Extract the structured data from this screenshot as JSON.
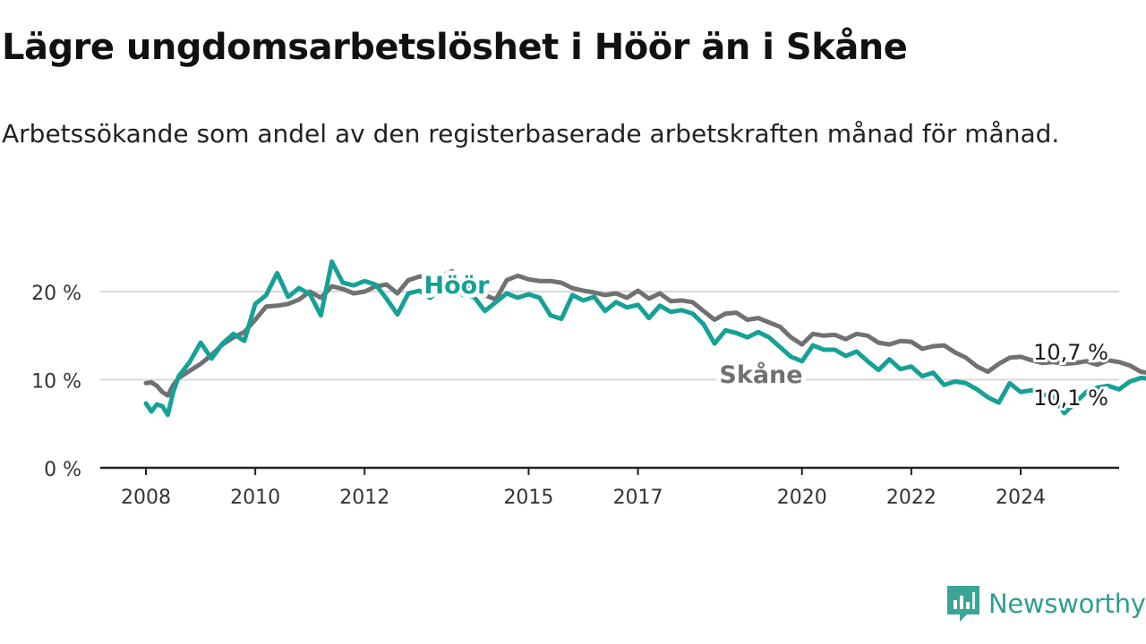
{
  "title": "Lägre ungdomsarbetslöshet i Höör än i Skåne",
  "subtitle": "Arbetssökande som andel av den registerbaserade arbetskraften månad för månad.",
  "brand": {
    "name": "Newsworthy",
    "icon": "newsworthy-logo-icon",
    "color": "#3aa597"
  },
  "chart_data": {
    "type": "line",
    "xlim": [
      2008,
      2026.5
    ],
    "ylim": [
      0,
      22
    ],
    "grid": true,
    "x_ticks": [
      {
        "value": 2008,
        "label": "2008"
      },
      {
        "value": 2010,
        "label": "2010"
      },
      {
        "value": 2012,
        "label": "2012"
      },
      {
        "value": 2015,
        "label": "2015"
      },
      {
        "value": 2017,
        "label": "2017"
      },
      {
        "value": 2020,
        "label": "2020"
      },
      {
        "value": 2022,
        "label": "2022"
      },
      {
        "value": 2024,
        "label": "2024"
      }
    ],
    "y_ticks": [
      {
        "value": 0,
        "label": "0 %"
      },
      {
        "value": 10,
        "label": "10 %"
      },
      {
        "value": 20,
        "label": "20 %"
      }
    ],
    "series": [
      {
        "name": "Skåne",
        "color": "#717073",
        "end_label": "10,7 %",
        "points": [
          [
            2008.0,
            9.6
          ],
          [
            2008.1,
            9.7
          ],
          [
            2008.2,
            9.3
          ],
          [
            2008.3,
            8.6
          ],
          [
            2008.4,
            8.2
          ],
          [
            2008.5,
            9.4
          ],
          [
            2008.6,
            10.2
          ],
          [
            2008.8,
            11.0
          ],
          [
            2009.0,
            11.8
          ],
          [
            2009.2,
            12.8
          ],
          [
            2009.4,
            14.0
          ],
          [
            2009.6,
            14.8
          ],
          [
            2009.8,
            15.4
          ],
          [
            2010.0,
            16.8
          ],
          [
            2010.2,
            18.3
          ],
          [
            2010.4,
            18.4
          ],
          [
            2010.6,
            18.6
          ],
          [
            2010.8,
            19.1
          ],
          [
            2011.0,
            20.0
          ],
          [
            2011.2,
            19.3
          ],
          [
            2011.4,
            20.6
          ],
          [
            2011.6,
            20.3
          ],
          [
            2011.8,
            19.8
          ],
          [
            2012.0,
            20.0
          ],
          [
            2012.2,
            20.6
          ],
          [
            2012.4,
            20.8
          ],
          [
            2012.6,
            19.8
          ],
          [
            2012.8,
            21.3
          ],
          [
            2013.0,
            21.7
          ],
          [
            2013.2,
            21.8
          ],
          [
            2013.4,
            21.8
          ],
          [
            2013.6,
            22.3
          ],
          [
            2013.8,
            20.6
          ],
          [
            2014.0,
            20.1
          ],
          [
            2014.2,
            19.6
          ],
          [
            2014.4,
            19.1
          ],
          [
            2014.6,
            21.3
          ],
          [
            2014.8,
            21.8
          ],
          [
            2015.0,
            21.4
          ],
          [
            2015.2,
            21.2
          ],
          [
            2015.4,
            21.2
          ],
          [
            2015.6,
            21.0
          ],
          [
            2015.8,
            20.4
          ],
          [
            2016.0,
            20.1
          ],
          [
            2016.2,
            19.9
          ],
          [
            2016.4,
            19.6
          ],
          [
            2016.6,
            19.8
          ],
          [
            2016.8,
            19.3
          ],
          [
            2017.0,
            20.1
          ],
          [
            2017.2,
            19.2
          ],
          [
            2017.4,
            19.8
          ],
          [
            2017.6,
            18.9
          ],
          [
            2017.8,
            19.0
          ],
          [
            2018.0,
            18.8
          ],
          [
            2018.2,
            17.8
          ],
          [
            2018.4,
            16.8
          ],
          [
            2018.6,
            17.5
          ],
          [
            2018.8,
            17.6
          ],
          [
            2019.0,
            16.8
          ],
          [
            2019.2,
            17.0
          ],
          [
            2019.4,
            16.5
          ],
          [
            2019.6,
            16.0
          ],
          [
            2019.8,
            14.8
          ],
          [
            2020.0,
            14.0
          ],
          [
            2020.2,
            15.2
          ],
          [
            2020.4,
            15.0
          ],
          [
            2020.6,
            15.1
          ],
          [
            2020.8,
            14.6
          ],
          [
            2021.0,
            15.2
          ],
          [
            2021.2,
            15.0
          ],
          [
            2021.4,
            14.2
          ],
          [
            2021.6,
            14.0
          ],
          [
            2021.8,
            14.4
          ],
          [
            2022.0,
            14.3
          ],
          [
            2022.2,
            13.5
          ],
          [
            2022.4,
            13.8
          ],
          [
            2022.6,
            13.9
          ],
          [
            2022.8,
            13.1
          ],
          [
            2023.0,
            12.5
          ],
          [
            2023.2,
            11.5
          ],
          [
            2023.4,
            10.9
          ],
          [
            2023.6,
            11.8
          ],
          [
            2023.8,
            12.5
          ],
          [
            2024.0,
            12.6
          ],
          [
            2024.2,
            12.2
          ],
          [
            2024.4,
            11.9
          ],
          [
            2024.6,
            12.0
          ],
          [
            2024.8,
            11.8
          ],
          [
            2025.0,
            11.9
          ],
          [
            2025.2,
            12.1
          ],
          [
            2025.4,
            11.7
          ],
          [
            2025.6,
            12.2
          ],
          [
            2025.8,
            12.0
          ],
          [
            2026.0,
            11.6
          ],
          [
            2026.2,
            10.9
          ],
          [
            2026.4,
            10.7
          ]
        ]
      },
      {
        "name": "Höör",
        "color": "#16a196",
        "end_label": "10,1 %",
        "points": [
          [
            2008.0,
            7.3
          ],
          [
            2008.1,
            6.4
          ],
          [
            2008.2,
            7.2
          ],
          [
            2008.3,
            7.0
          ],
          [
            2008.4,
            6.0
          ],
          [
            2008.5,
            8.6
          ],
          [
            2008.6,
            10.4
          ],
          [
            2008.8,
            12.0
          ],
          [
            2009.0,
            14.2
          ],
          [
            2009.2,
            12.4
          ],
          [
            2009.4,
            14.1
          ],
          [
            2009.6,
            15.2
          ],
          [
            2009.8,
            14.4
          ],
          [
            2010.0,
            18.6
          ],
          [
            2010.2,
            19.6
          ],
          [
            2010.4,
            22.1
          ],
          [
            2010.6,
            19.4
          ],
          [
            2010.8,
            20.4
          ],
          [
            2011.0,
            19.7
          ],
          [
            2011.2,
            17.3
          ],
          [
            2011.4,
            23.4
          ],
          [
            2011.6,
            21.0
          ],
          [
            2011.8,
            20.7
          ],
          [
            2012.0,
            21.2
          ],
          [
            2012.2,
            20.8
          ],
          [
            2012.4,
            19.2
          ],
          [
            2012.6,
            17.4
          ],
          [
            2012.8,
            19.8
          ],
          [
            2013.0,
            20.1
          ],
          [
            2013.2,
            19.3
          ],
          [
            2013.4,
            20.3
          ],
          [
            2013.6,
            21.2
          ],
          [
            2013.8,
            19.6
          ],
          [
            2014.0,
            19.4
          ],
          [
            2014.2,
            17.8
          ],
          [
            2014.4,
            18.8
          ],
          [
            2014.6,
            19.8
          ],
          [
            2014.8,
            19.3
          ],
          [
            2015.0,
            19.7
          ],
          [
            2015.2,
            19.3
          ],
          [
            2015.4,
            17.3
          ],
          [
            2015.6,
            16.9
          ],
          [
            2015.8,
            19.6
          ],
          [
            2016.0,
            19.0
          ],
          [
            2016.2,
            19.4
          ],
          [
            2016.4,
            17.8
          ],
          [
            2016.6,
            18.8
          ],
          [
            2016.8,
            18.2
          ],
          [
            2017.0,
            18.5
          ],
          [
            2017.2,
            17.0
          ],
          [
            2017.4,
            18.4
          ],
          [
            2017.6,
            17.7
          ],
          [
            2017.8,
            17.9
          ],
          [
            2018.0,
            17.5
          ],
          [
            2018.2,
            16.3
          ],
          [
            2018.4,
            14.1
          ],
          [
            2018.6,
            15.6
          ],
          [
            2018.8,
            15.3
          ],
          [
            2019.0,
            14.8
          ],
          [
            2019.2,
            15.4
          ],
          [
            2019.4,
            14.8
          ],
          [
            2019.6,
            13.7
          ],
          [
            2019.8,
            12.6
          ],
          [
            2020.0,
            12.1
          ],
          [
            2020.2,
            13.9
          ],
          [
            2020.4,
            13.4
          ],
          [
            2020.6,
            13.4
          ],
          [
            2020.8,
            12.7
          ],
          [
            2021.0,
            13.2
          ],
          [
            2021.2,
            12.1
          ],
          [
            2021.4,
            11.1
          ],
          [
            2021.6,
            12.3
          ],
          [
            2021.8,
            11.2
          ],
          [
            2022.0,
            11.5
          ],
          [
            2022.2,
            10.4
          ],
          [
            2022.4,
            10.8
          ],
          [
            2022.6,
            9.4
          ],
          [
            2022.8,
            9.8
          ],
          [
            2023.0,
            9.6
          ],
          [
            2023.2,
            8.9
          ],
          [
            2023.4,
            8.0
          ],
          [
            2023.6,
            7.4
          ],
          [
            2023.8,
            9.6
          ],
          [
            2024.0,
            8.6
          ],
          [
            2024.2,
            8.8
          ],
          [
            2024.4,
            8.3
          ],
          [
            2024.6,
            8.1
          ],
          [
            2024.8,
            6.2
          ],
          [
            2025.0,
            7.4
          ],
          [
            2025.2,
            8.6
          ],
          [
            2025.4,
            9.1
          ],
          [
            2025.6,
            9.3
          ],
          [
            2025.8,
            8.9
          ],
          [
            2026.0,
            9.8
          ],
          [
            2026.2,
            10.2
          ],
          [
            2026.4,
            10.1
          ]
        ]
      }
    ]
  }
}
